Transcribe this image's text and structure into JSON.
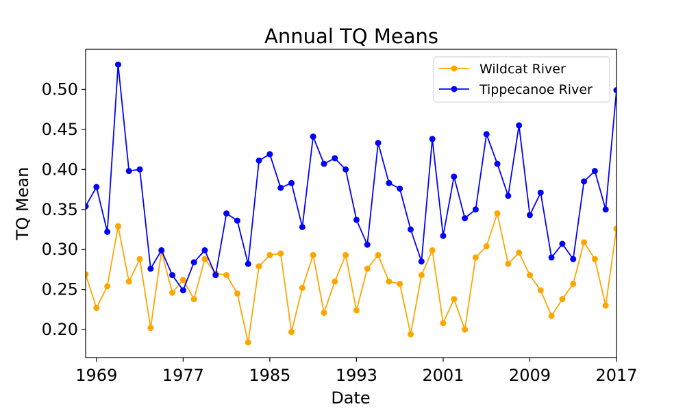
{
  "chart_data": {
    "type": "line",
    "title": "Annual TQ Means",
    "xlabel": "Date",
    "ylabel": "TQ Mean",
    "xlim": [
      1968,
      2017
    ],
    "ylim": [
      0.165,
      0.55
    ],
    "x_ticks": [
      1969,
      1977,
      1985,
      1993,
      2001,
      2009,
      2017
    ],
    "x_tick_labels": [
      "1969",
      "1977",
      "1985",
      "1993",
      "2001",
      "2009",
      "2017"
    ],
    "y_ticks": [
      0.2,
      0.25,
      0.3,
      0.35,
      0.4,
      0.45,
      0.5
    ],
    "y_tick_labels": [
      "0.20",
      "0.25",
      "0.30",
      "0.35",
      "0.40",
      "0.45",
      "0.50"
    ],
    "legend_position": "top-right",
    "grid": false,
    "x": [
      1968,
      1969,
      1970,
      1971,
      1972,
      1973,
      1974,
      1975,
      1976,
      1977,
      1978,
      1979,
      1980,
      1981,
      1982,
      1983,
      1984,
      1985,
      1986,
      1987,
      1988,
      1989,
      1990,
      1991,
      1992,
      1993,
      1994,
      1995,
      1996,
      1997,
      1998,
      1999,
      2000,
      2001,
      2002,
      2003,
      2004,
      2005,
      2006,
      2007,
      2008,
      2009,
      2010,
      2011,
      2012,
      2013,
      2014,
      2015,
      2016,
      2017
    ],
    "series": [
      {
        "name": "Wildcat River",
        "color": "#ffa500",
        "values": [
          0.269,
          0.227,
          0.254,
          0.329,
          0.26,
          0.288,
          0.202,
          0.298,
          0.246,
          0.262,
          0.238,
          0.288,
          0.27,
          0.268,
          0.245,
          0.184,
          0.279,
          0.293,
          0.295,
          0.197,
          0.252,
          0.293,
          0.221,
          0.26,
          0.293,
          0.224,
          0.276,
          0.293,
          0.26,
          0.257,
          0.194,
          0.268,
          0.299,
          0.208,
          0.238,
          0.2,
          0.29,
          0.304,
          0.345,
          0.282,
          0.296,
          0.268,
          0.249,
          0.217,
          0.238,
          0.257,
          0.309,
          0.288,
          0.23,
          0.326
        ]
      },
      {
        "name": "Tippecanoe River",
        "color": "#0000ff",
        "values": [
          0.354,
          0.378,
          0.322,
          0.531,
          0.398,
          0.4,
          0.276,
          0.299,
          0.268,
          0.249,
          0.284,
          0.299,
          0.268,
          0.345,
          0.336,
          0.282,
          0.411,
          0.419,
          0.377,
          0.383,
          0.328,
          0.441,
          0.407,
          0.414,
          0.4,
          0.337,
          0.306,
          0.433,
          0.383,
          0.376,
          0.325,
          0.285,
          0.438,
          0.317,
          0.391,
          0.339,
          0.35,
          0.444,
          0.407,
          0.367,
          0.455,
          0.343,
          0.371,
          0.29,
          0.307,
          0.288,
          0.385,
          0.398,
          0.35,
          0.499
        ]
      }
    ]
  }
}
